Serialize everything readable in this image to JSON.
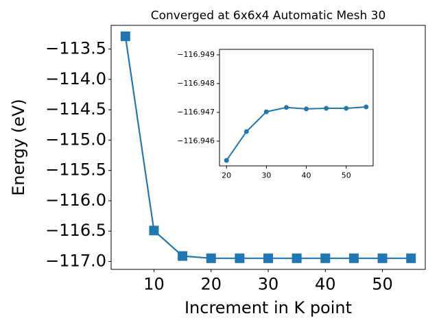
{
  "chart_data": [
    {
      "type": "line",
      "title": "Converged at 6x6x4 Automatic Mesh 30",
      "x_label": "Increment in K point",
      "y_label": "Energy (eV)",
      "x": [
        5,
        10,
        15,
        20,
        25,
        30,
        35,
        40,
        45,
        50,
        55
      ],
      "series": [
        {
          "color": "#1f77b4",
          "marker": "square",
          "values": [
            -113.29,
            -116.49,
            -116.91,
            -116.947,
            -116.947,
            -116.947,
            -116.947,
            -116.947,
            -116.947,
            -116.947,
            -116.947
          ]
        }
      ],
      "xlim": [
        2.5,
        57.5
      ],
      "xticks": [
        10,
        20,
        30,
        40,
        50
      ],
      "ylim": [
        -117.13,
        -113.11
      ],
      "yticks": [
        {
          "value": -117.0,
          "label": "−117.0"
        },
        {
          "value": -116.5,
          "label": "−116.5"
        },
        {
          "value": -116.0,
          "label": "−116.0"
        },
        {
          "value": -115.5,
          "label": "−115.5"
        },
        {
          "value": -115.0,
          "label": "−115.0"
        },
        {
          "value": -114.5,
          "label": "−114.5"
        },
        {
          "value": -114.0,
          "label": "−114.0"
        },
        {
          "value": -113.5,
          "label": "−113.5"
        }
      ],
      "grid": false
    },
    {
      "type": "line",
      "x": [
        20,
        25,
        30,
        35,
        40,
        45,
        50,
        55
      ],
      "series": [
        {
          "color": "#1f77b4",
          "marker": "circle",
          "values": [
            -116.94533,
            -116.94633,
            -116.94702,
            -116.94717,
            -116.94712,
            -116.94714,
            -116.94714,
            -116.94719
          ]
        }
      ],
      "xlim": [
        18.25,
        56.75
      ],
      "xticks": [
        20,
        30,
        40,
        50
      ],
      "ylim": [
        -116.94514,
        -116.94919
      ],
      "yticks": [
        {
          "value": -116.946,
          "label": "−116.946"
        },
        {
          "value": -116.947,
          "label": "−116.947"
        },
        {
          "value": -116.948,
          "label": "−116.948"
        },
        {
          "value": -116.949,
          "label": "−116.949"
        }
      ],
      "grid": false
    }
  ]
}
